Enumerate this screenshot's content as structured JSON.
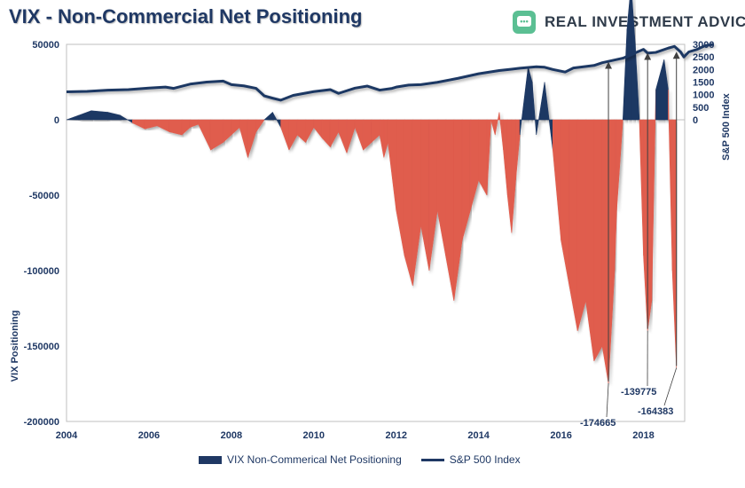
{
  "title": "VIX - Non-Commercial Net Positioning",
  "brand": {
    "name": "REAL INVESTMENT ADVICE",
    "logo_text": "•••",
    "color": "#5bbf93"
  },
  "colors": {
    "line": "#1f3864",
    "positive": "#1f3864",
    "negative": "#e05d4e",
    "arrow": "#404040"
  },
  "chart_data": [
    {
      "type": "line",
      "series": [
        {
          "name": "S&P 500 Index",
          "x": [
            2004.0,
            2004.5,
            2005.0,
            2005.5,
            2006.0,
            2006.4,
            2006.6,
            2007.0,
            2007.4,
            2007.8,
            2008.0,
            2008.3,
            2008.6,
            2008.8,
            2009.0,
            2009.2,
            2009.5,
            2010.0,
            2010.4,
            2010.6,
            2011.0,
            2011.3,
            2011.6,
            2011.9,
            2012.0,
            2012.3,
            2012.6,
            2013.0,
            2013.5,
            2014.0,
            2014.5,
            2014.8,
            2015.0,
            2015.4,
            2015.6,
            2015.8,
            2016.1,
            2016.3,
            2016.5,
            2016.8,
            2017.0,
            2017.5,
            2018.0,
            2018.1,
            2018.3,
            2018.6,
            2018.75,
            2018.9,
            2018.98,
            2019.1,
            2019.3,
            2019.5,
            2019.7
          ],
          "values": [
            1110,
            1130,
            1180,
            1200,
            1260,
            1300,
            1250,
            1420,
            1500,
            1540,
            1400,
            1350,
            1250,
            950,
            860,
            780,
            970,
            1120,
            1200,
            1050,
            1260,
            1340,
            1180,
            1250,
            1300,
            1380,
            1400,
            1490,
            1650,
            1830,
            1960,
            2010,
            2050,
            2110,
            2090,
            2000,
            1900,
            2060,
            2100,
            2160,
            2270,
            2450,
            2800,
            2650,
            2680,
            2850,
            2920,
            2700,
            2500,
            2700,
            2800,
            2950,
            3000
          ]
        }
      ],
      "ylabel": "S&P 500 Index",
      "y_ticks": [
        0,
        500,
        1000,
        1500,
        2000,
        2500,
        3000
      ],
      "ylim": [
        0,
        3000
      ],
      "xlim": [
        2004,
        2019
      ]
    },
    {
      "type": "area",
      "series": [
        {
          "name": "VIX Non-Commerical Net Positioning",
          "x": [
            2004.0,
            2004.3,
            2004.6,
            2005.0,
            2005.3,
            2005.6,
            2005.9,
            2006.2,
            2006.5,
            2006.8,
            2007.0,
            2007.2,
            2007.5,
            2007.8,
            2008.0,
            2008.2,
            2008.4,
            2008.6,
            2008.8,
            2009.0,
            2009.2,
            2009.4,
            2009.6,
            2009.8,
            2010.0,
            2010.2,
            2010.4,
            2010.6,
            2010.8,
            2011.0,
            2011.2,
            2011.4,
            2011.6,
            2011.7,
            2011.8,
            2012.0,
            2012.2,
            2012.4,
            2012.6,
            2012.8,
            2013.0,
            2013.2,
            2013.4,
            2013.6,
            2013.8,
            2014.0,
            2014.2,
            2014.3,
            2014.4,
            2014.5,
            2014.6,
            2014.7,
            2014.8,
            2014.9,
            2015.0,
            2015.2,
            2015.3,
            2015.4,
            2015.6,
            2015.8,
            2016.0,
            2016.2,
            2016.4,
            2016.6,
            2016.8,
            2017.0,
            2017.15,
            2017.3,
            2017.35,
            2017.5,
            2017.6,
            2017.7,
            2017.8,
            2017.9,
            2018.0,
            2018.1,
            2018.2,
            2018.3,
            2018.5,
            2018.6,
            2018.7,
            2018.8
          ],
          "values": [
            0,
            3000,
            6000,
            5000,
            3000,
            -2000,
            -6000,
            -4000,
            -8000,
            -10000,
            -5000,
            -3000,
            -20000,
            -15000,
            -10000,
            -5000,
            -25000,
            -8000,
            0,
            5000,
            -5000,
            -20000,
            -10000,
            -15000,
            -5000,
            -12000,
            -18000,
            -8000,
            -22000,
            -5000,
            -20000,
            -15000,
            -10000,
            -25000,
            -15000,
            -60000,
            -90000,
            -110000,
            -70000,
            -100000,
            -60000,
            -90000,
            -120000,
            -80000,
            -60000,
            -40000,
            -50000,
            0,
            -10000,
            5000,
            -20000,
            -50000,
            -75000,
            -40000,
            -10000,
            35000,
            25000,
            -10000,
            25000,
            -20000,
            -80000,
            -110000,
            -140000,
            -120000,
            -160000,
            -150000,
            -174665,
            -100000,
            -60000,
            0,
            60000,
            90000,
            50000,
            0,
            -90000,
            -139775,
            -120000,
            20000,
            40000,
            20000,
            -100000,
            -164383
          ]
        }
      ],
      "ylabel": "VIX Positioning",
      "y_ticks": [
        -200000,
        -150000,
        -100000,
        -50000,
        0,
        50000
      ],
      "y_tick_labels": [
        "-200000",
        "-150000",
        "-100000",
        "-50000",
        "0",
        "50000"
      ],
      "ylim": [
        -200000,
        50000
      ],
      "x_ticks": [
        2004,
        2006,
        2008,
        2010,
        2012,
        2014,
        2016,
        2018
      ],
      "xlim": [
        2004,
        2019
      ],
      "annotations": [
        {
          "text": "-174665",
          "x": 2017.15,
          "value": -174665,
          "target_year": 2017.15,
          "target_index": 2450
        },
        {
          "text": "-139775",
          "x": 2018.1,
          "value": -139775,
          "target_year": 2018.1,
          "target_index": 2800
        },
        {
          "text": "-164383",
          "x": 2018.8,
          "value": -164383,
          "target_year": 2018.8,
          "target_index": 2850
        }
      ]
    }
  ],
  "legend": [
    {
      "label": "VIX Non-Commerical Net Positioning",
      "kind": "bar"
    },
    {
      "label": "S&P 500 Index",
      "kind": "line"
    }
  ]
}
